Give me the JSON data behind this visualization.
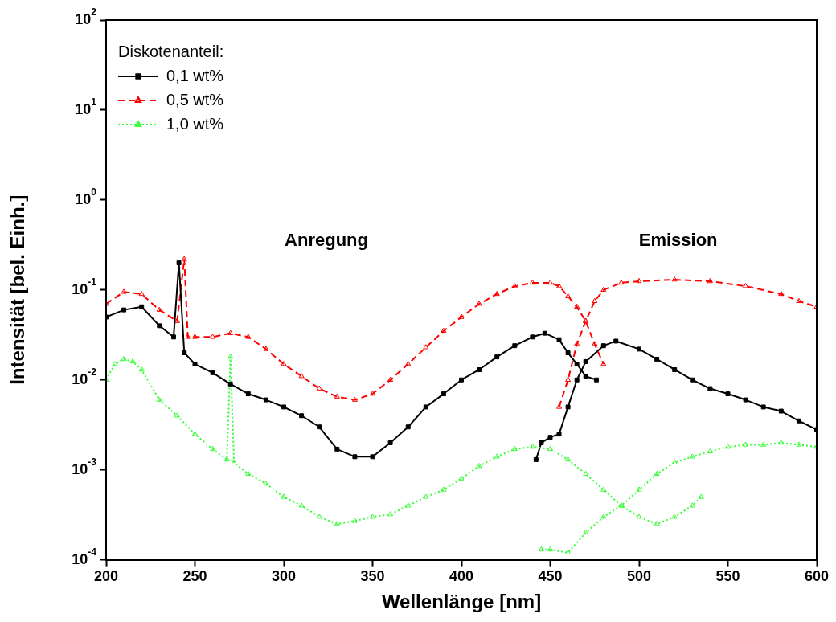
{
  "chart_data": {
    "type": "line",
    "xlabel": "Wellenlänge [nm]",
    "ylabel": "Intensität [bel. Einh.]",
    "legend_title": "Diskotenanteil:",
    "legend": "top left",
    "log": "y",
    "grid": false,
    "xlim": [
      200,
      600
    ],
    "xticks": [
      200,
      250,
      300,
      350,
      400,
      450,
      500,
      550,
      600
    ],
    "ylim": [
      0.0001,
      100
    ],
    "yticks": [
      {
        "value": 0.0001,
        "label": "10$^{-4}$"
      },
      {
        "value": 0.001,
        "label": "10$^{-3}$"
      },
      {
        "value": 0.01,
        "label": "10$^{-2}$"
      },
      {
        "value": 0.1,
        "label": "10$^{-1}$"
      },
      {
        "value": 1,
        "label": "10$^{0}$"
      },
      {
        "value": 10,
        "label": "10$^{1}$"
      },
      {
        "value": 100,
        "label": "10$^{2}$"
      }
    ],
    "annotations": [
      "Anregung",
      "Emission"
    ],
    "series": [
      {
        "name": "0,1 wt%",
        "color": "#000000",
        "marker": "square",
        "line_style": "solid",
        "x": [
          200,
          210,
          220,
          230,
          238,
          241,
          244,
          250,
          260,
          270,
          280,
          290,
          300,
          310,
          320,
          330,
          340,
          350,
          360,
          370,
          380,
          390,
          400,
          410,
          420,
          430,
          440,
          447,
          455,
          460,
          465,
          470,
          476
        ],
        "values": [
          0.05,
          0.06,
          0.065,
          0.04,
          0.03,
          0.2,
          0.02,
          0.015,
          0.012,
          0.009,
          0.007,
          0.006,
          0.005,
          0.004,
          0.003,
          0.0017,
          0.0014,
          0.0014,
          0.002,
          0.003,
          0.005,
          0.007,
          0.01,
          0.013,
          0.018,
          0.024,
          0.03,
          0.033,
          0.028,
          0.02,
          0.015,
          0.011,
          0.01
        ]
      },
      {
        "name": "0,5 wt%",
        "color": "#ff0000",
        "marker": "triangle",
        "line_style": "dashed",
        "x": [
          200,
          210,
          220,
          230,
          240,
          244,
          246,
          250,
          260,
          270,
          280,
          290,
          300,
          310,
          320,
          330,
          340,
          350,
          360,
          370,
          380,
          390,
          400,
          410,
          420,
          430,
          440,
          450,
          455,
          460,
          465,
          470,
          475,
          480
        ],
        "values": [
          0.07,
          0.095,
          0.09,
          0.06,
          0.045,
          0.22,
          0.03,
          0.03,
          0.03,
          0.033,
          0.03,
          0.022,
          0.015,
          0.011,
          0.008,
          0.0065,
          0.006,
          0.007,
          0.01,
          0.015,
          0.023,
          0.035,
          0.05,
          0.07,
          0.09,
          0.11,
          0.12,
          0.12,
          0.11,
          0.085,
          0.065,
          0.045,
          0.025,
          0.015
        ]
      },
      {
        "name": "1,0 wt%",
        "color": "#33ff33",
        "marker": "triangle",
        "line_style": "dotted",
        "x": [
          200,
          205,
          210,
          215,
          220,
          230,
          240,
          250,
          260,
          268,
          270,
          272,
          280,
          290,
          300,
          310,
          320,
          330,
          340,
          350,
          360,
          370,
          380,
          390,
          400,
          410,
          420,
          430,
          440,
          450,
          460,
          470,
          480,
          490,
          500,
          510,
          520,
          530,
          535
        ],
        "values": [
          0.01,
          0.015,
          0.017,
          0.016,
          0.013,
          0.006,
          0.004,
          0.0025,
          0.0017,
          0.0013,
          0.018,
          0.0012,
          0.0009,
          0.0007,
          0.0005,
          0.0004,
          0.0003,
          0.00025,
          0.00027,
          0.0003,
          0.00032,
          0.0004,
          0.0005,
          0.0006,
          0.0008,
          0.0011,
          0.0014,
          0.0017,
          0.0018,
          0.0017,
          0.0013,
          0.0009,
          0.0006,
          0.0004,
          0.0003,
          0.00025,
          0.0003,
          0.0004,
          0.0005
        ]
      },
      {
        "color": "#000000",
        "marker": "square",
        "line_style": "solid",
        "x": [
          442,
          445,
          450,
          455,
          460,
          465,
          470,
          480,
          487,
          500,
          510,
          520,
          530,
          540,
          550,
          560,
          570,
          580,
          590,
          600
        ],
        "values": [
          0.0013,
          0.002,
          0.0023,
          0.0025,
          0.005,
          0.01,
          0.016,
          0.024,
          0.027,
          0.022,
          0.017,
          0.013,
          0.01,
          0.008,
          0.007,
          0.006,
          0.005,
          0.0045,
          0.0035,
          0.0028
        ]
      },
      {
        "color": "#ff0000",
        "marker": "triangle",
        "line_style": "dashed",
        "x": [
          455,
          460,
          465,
          470,
          475,
          480,
          490,
          500,
          520,
          540,
          560,
          580,
          590,
          600
        ],
        "values": [
          0.005,
          0.01,
          0.025,
          0.045,
          0.075,
          0.1,
          0.12,
          0.125,
          0.13,
          0.125,
          0.11,
          0.09,
          0.075,
          0.065
        ]
      },
      {
        "color": "#33ff33",
        "marker": "triangle",
        "line_style": "dotted",
        "x": [
          445,
          450,
          460,
          470,
          480,
          490,
          500,
          510,
          520,
          530,
          540,
          550,
          560,
          570,
          580,
          590,
          600
        ],
        "values": [
          0.00013,
          0.00013,
          0.00012,
          0.0002,
          0.0003,
          0.0004,
          0.0006,
          0.0009,
          0.0012,
          0.0014,
          0.0016,
          0.0018,
          0.0019,
          0.0019,
          0.002,
          0.0019,
          0.0018
        ]
      }
    ]
  }
}
